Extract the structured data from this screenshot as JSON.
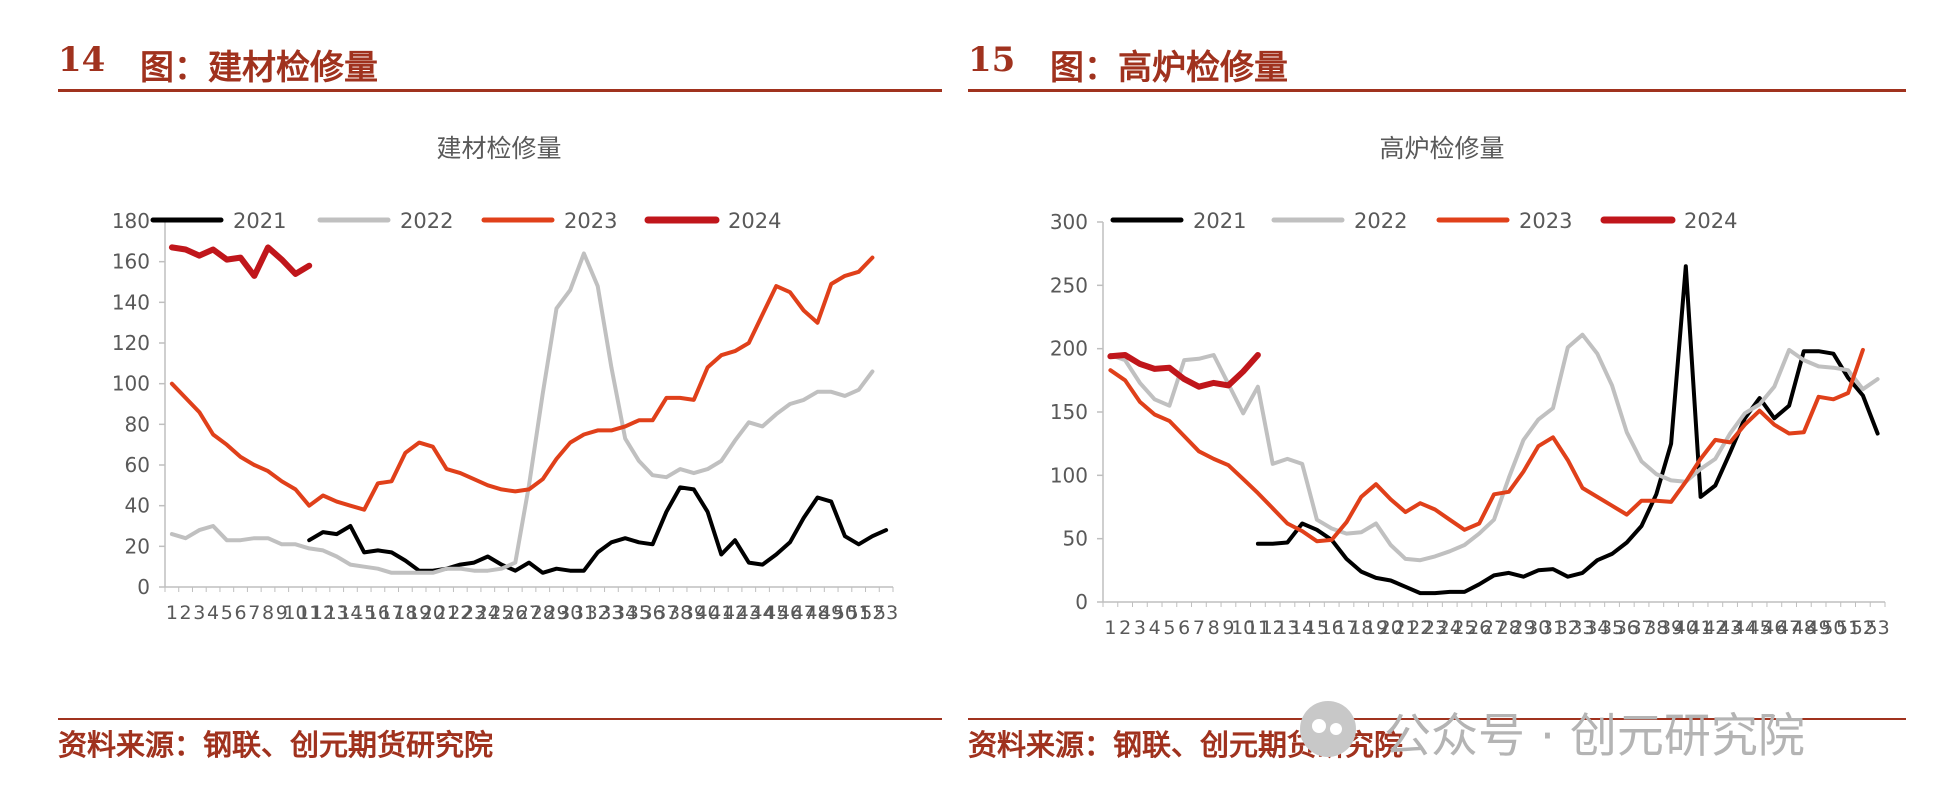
{
  "figures": [
    {
      "number": "14",
      "title": "图：建材检修量",
      "source": "资料来源：钢联、创元期货研究院"
    },
    {
      "number": "15",
      "title": "图：高炉检修量",
      "source": "资料来源：钢联、创元期货研究院"
    }
  ],
  "watermark": "公众号 · 创元研究院",
  "chart_data": [
    {
      "type": "line",
      "title": "建材检修量",
      "xlabel": "",
      "ylabel": "",
      "ylim": [
        0,
        180
      ],
      "yticks": [
        0,
        20,
        40,
        60,
        80,
        100,
        120,
        140,
        160,
        180
      ],
      "categories": [
        "1",
        "2",
        "3",
        "4",
        "5",
        "6",
        "7",
        "8",
        "9",
        "10",
        "11",
        "12",
        "13",
        "14",
        "15",
        "16",
        "17",
        "18",
        "19",
        "20",
        "21",
        "22",
        "23",
        "24",
        "25",
        "26",
        "27",
        "28",
        "29",
        "30",
        "31",
        "32",
        "33",
        "34",
        "35",
        "36",
        "37",
        "38",
        "39",
        "40",
        "41",
        "42",
        "43",
        "44",
        "45",
        "46",
        "47",
        "48",
        "49",
        "50",
        "51",
        "52",
        "53"
      ],
      "legend_position": "top",
      "grid": false,
      "series": [
        {
          "name": "2021",
          "color": "#000000",
          "width": 4,
          "values": [
            null,
            null,
            null,
            null,
            null,
            null,
            null,
            null,
            null,
            null,
            23,
            27,
            26,
            30,
            17,
            18,
            17,
            13,
            8,
            8,
            9,
            11,
            12,
            15,
            11,
            8,
            12,
            7,
            9,
            8,
            8,
            17,
            22,
            24,
            22,
            21,
            37,
            49,
            48,
            37,
            16,
            23,
            12,
            11,
            16,
            22,
            34,
            44,
            42,
            25,
            21,
            25,
            28
          ]
        },
        {
          "name": "2022",
          "color": "#c0c0c0",
          "width": 4,
          "values": [
            26,
            24,
            28,
            30,
            23,
            23,
            24,
            24,
            21,
            21,
            19,
            18,
            15,
            11,
            10,
            9,
            7,
            7,
            7,
            7,
            9,
            9,
            8,
            8,
            9,
            12,
            50,
            95,
            137,
            146,
            164,
            148,
            108,
            73,
            62,
            55,
            54,
            58,
            56,
            58,
            62,
            72,
            81,
            79,
            85,
            90,
            92,
            96,
            96,
            94,
            97,
            106,
            null
          ]
        },
        {
          "name": "2023",
          "color": "#e0401a",
          "width": 4,
          "values": [
            100,
            93,
            86,
            75,
            70,
            64,
            60,
            57,
            52,
            48,
            40,
            45,
            42,
            40,
            38,
            51,
            52,
            66,
            71,
            69,
            58,
            56,
            53,
            50,
            48,
            47,
            48,
            53,
            63,
            71,
            75,
            77,
            77,
            79,
            82,
            82,
            93,
            93,
            92,
            108,
            114,
            116,
            120,
            134,
            148,
            145,
            136,
            130,
            149,
            153,
            155,
            162,
            null
          ]
        },
        {
          "name": "2024",
          "color": "#c0161b",
          "width": 6,
          "values": [
            167,
            166,
            163,
            166,
            161,
            162,
            153,
            167,
            161,
            154,
            158,
            null,
            null,
            null,
            null,
            null,
            null,
            null,
            null,
            null,
            null,
            null,
            null,
            null,
            null,
            null,
            null,
            null,
            null,
            null,
            null,
            null,
            null,
            null,
            null,
            null,
            null,
            null,
            null,
            null,
            null,
            null,
            null,
            null,
            null,
            null,
            null,
            null,
            null,
            null,
            null,
            null,
            null
          ]
        }
      ]
    },
    {
      "type": "line",
      "title": "高炉检修量",
      "xlabel": "",
      "ylabel": "",
      "ylim": [
        0,
        300
      ],
      "yticks": [
        0,
        50,
        100,
        150,
        200,
        250,
        300
      ],
      "categories": [
        "1",
        "2",
        "3",
        "4",
        "5",
        "6",
        "7",
        "8",
        "9",
        "10",
        "11",
        "12",
        "13",
        "14",
        "15",
        "16",
        "17",
        "18",
        "19",
        "20",
        "21",
        "22",
        "23",
        "24",
        "25",
        "26",
        "27",
        "28",
        "29",
        "30",
        "31",
        "32",
        "33",
        "34",
        "35",
        "36",
        "37",
        "38",
        "39",
        "40",
        "41",
        "42",
        "43",
        "44",
        "45",
        "46",
        "47",
        "48",
        "49",
        "50",
        "51",
        "52",
        "53"
      ],
      "legend_position": "top",
      "grid": false,
      "series": [
        {
          "name": "2021",
          "color": "#000000",
          "width": 4,
          "values": [
            null,
            null,
            null,
            null,
            null,
            null,
            null,
            null,
            null,
            null,
            46,
            46,
            47,
            62,
            57,
            49,
            34,
            24,
            19,
            17,
            12,
            7,
            7,
            8,
            8,
            14,
            21,
            23,
            20,
            25,
            26,
            20,
            23,
            33,
            38,
            47,
            60,
            85,
            125,
            265,
            83,
            92,
            118,
            145,
            161,
            145,
            155,
            198,
            198,
            196,
            177,
            163,
            133
          ]
        },
        {
          "name": "2022",
          "color": "#c0c0c0",
          "width": 4,
          "values": [
            195,
            191,
            173,
            160,
            155,
            191,
            192,
            195,
            172,
            149,
            170,
            109,
            113,
            109,
            65,
            58,
            54,
            55,
            62,
            45,
            34,
            33,
            36,
            40,
            45,
            54,
            65,
            98,
            128,
            144,
            153,
            201,
            211,
            196,
            171,
            134,
            111,
            101,
            96,
            95,
            105,
            113,
            133,
            149,
            156,
            170,
            199,
            191,
            186,
            185,
            183,
            168,
            176
          ]
        },
        {
          "name": "2023",
          "color": "#e0401a",
          "width": 4,
          "values": [
            183,
            175,
            158,
            148,
            143,
            131,
            119,
            113,
            108,
            97,
            86,
            74,
            62,
            56,
            48,
            49,
            63,
            83,
            93,
            81,
            71,
            78,
            73,
            65,
            57,
            62,
            85,
            87,
            103,
            123,
            130,
            112,
            90,
            83,
            76,
            69,
            80,
            80,
            79,
            95,
            113,
            128,
            126,
            140,
            151,
            140,
            133,
            134,
            162,
            160,
            165,
            199,
            null
          ]
        },
        {
          "name": "2024",
          "color": "#c0161b",
          "width": 6,
          "values": [
            194,
            195,
            188,
            184,
            185,
            176,
            170,
            173,
            171,
            182,
            195,
            null,
            null,
            null,
            null,
            null,
            null,
            null,
            null,
            null,
            null,
            null,
            null,
            null,
            null,
            null,
            null,
            null,
            null,
            null,
            null,
            null,
            null,
            null,
            null,
            null,
            null,
            null,
            null,
            null,
            null,
            null,
            null,
            null,
            null,
            null,
            null,
            null,
            null,
            null,
            null,
            null,
            null
          ]
        }
      ]
    }
  ]
}
